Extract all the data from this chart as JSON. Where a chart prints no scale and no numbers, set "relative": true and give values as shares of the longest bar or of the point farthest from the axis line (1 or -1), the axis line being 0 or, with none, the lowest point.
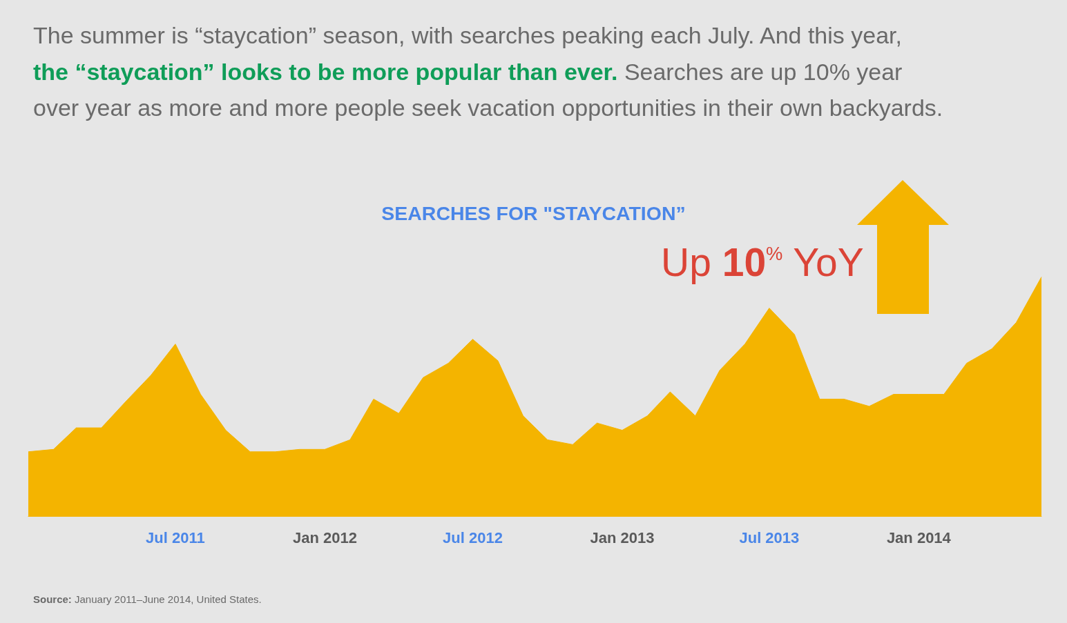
{
  "chart_data": {
    "type": "area",
    "title": "SEARCHES FOR \"STAYCATION”",
    "relative": true,
    "color": "#f4b400",
    "x": [
      "2011-01",
      "2011-02",
      "2011-03",
      "2011-04",
      "2011-05",
      "2011-06",
      "2011-07",
      "2011-08",
      "2011-09",
      "2011-10",
      "2011-11",
      "2011-12",
      "2012-01",
      "2012-02",
      "2012-03",
      "2012-04",
      "2012-05",
      "2012-06",
      "2012-07",
      "2012-08",
      "2012-09",
      "2012-10",
      "2012-11",
      "2012-12",
      "2013-01",
      "2013-02",
      "2013-03",
      "2013-04",
      "2013-05",
      "2013-06",
      "2013-07",
      "2013-08",
      "2013-09",
      "2013-10",
      "2013-11",
      "2013-12",
      "2014-01",
      "2014-02",
      "2014-03",
      "2014-04",
      "2014-05",
      "2014-06"
    ],
    "values": [
      0.27,
      0.28,
      0.37,
      0.37,
      0.48,
      0.59,
      0.72,
      0.51,
      0.36,
      0.27,
      0.27,
      0.28,
      0.28,
      0.32,
      0.49,
      0.43,
      0.58,
      0.64,
      0.74,
      0.65,
      0.42,
      0.32,
      0.3,
      0.39,
      0.36,
      0.42,
      0.52,
      0.42,
      0.61,
      0.72,
      0.87,
      0.76,
      0.49,
      0.49,
      0.46,
      0.51,
      0.51,
      0.51,
      0.64,
      0.7,
      0.81,
      1
    ],
    "xlim": [
      "2011-01",
      "2014-06"
    ],
    "xticks": [
      {
        "value": "2011-07",
        "label": "Jul 2011"
      },
      {
        "value": "2012-01",
        "label": "Jan 2012"
      },
      {
        "value": "2012-07",
        "label": "Jul 2012"
      },
      {
        "value": "2013-01",
        "label": "Jan 2013"
      },
      {
        "value": "2013-07",
        "label": "Jul 2013"
      },
      {
        "value": "2014-01",
        "label": "Jan 2014"
      }
    ],
    "tick_labels": "x",
    "annotations": [
      "The summer is “staycation” season, with searches peaking each July. And this year,",
      "the “staycation” looks to be more popular than ever.",
      "Searches are up 10% year",
      "over year as more and more people seek vacation opportunities in their own backyards.",
      "Up 10$^{%}$ YoY",
      "Source: January 2011–June 2014, United States."
    ]
  }
}
